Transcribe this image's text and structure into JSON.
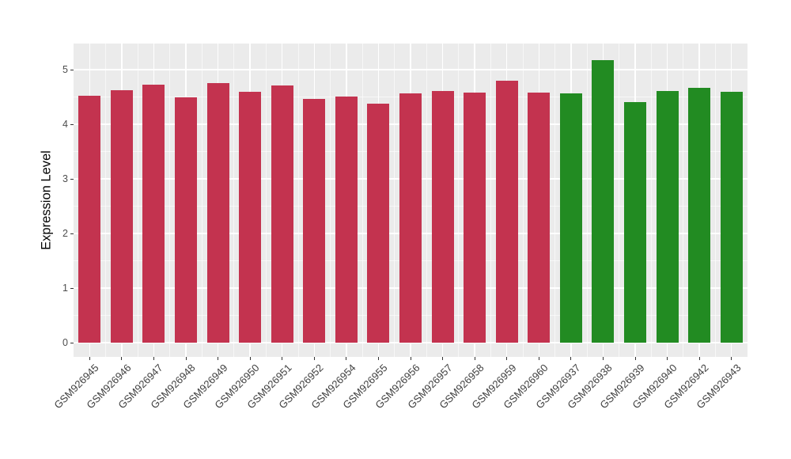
{
  "chart_data": {
    "type": "bar",
    "title": "",
    "xlabel": "",
    "ylabel": "Expression Level",
    "ylim": [
      0,
      5.45
    ],
    "yticks": [
      0,
      1,
      2,
      3,
      4,
      5
    ],
    "yminor_ticks": [
      0.5,
      1.5,
      2.5,
      3.5,
      4.5
    ],
    "grid": "on",
    "legend": "none",
    "x_tick_rotation_deg": 45,
    "categories": [
      "GSM926945",
      "GSM926946",
      "GSM926947",
      "GSM926948",
      "GSM926949",
      "GSM926950",
      "GSM926951",
      "GSM926952",
      "GSM926954",
      "GSM926955",
      "GSM926956",
      "GSM926957",
      "GSM926958",
      "GSM926959",
      "GSM926960",
      "GSM926937",
      "GSM926938",
      "GSM926939",
      "GSM926940",
      "GSM926942",
      "GSM926943"
    ],
    "values": [
      4.52,
      4.63,
      4.73,
      4.5,
      4.76,
      4.6,
      4.71,
      4.46,
      4.51,
      4.38,
      4.56,
      4.61,
      4.58,
      4.8,
      4.58,
      4.57,
      5.18,
      4.4,
      4.61,
      4.67,
      4.59
    ],
    "groups": [
      "red",
      "red",
      "red",
      "red",
      "red",
      "red",
      "red",
      "red",
      "red",
      "red",
      "red",
      "red",
      "red",
      "red",
      "red",
      "green",
      "green",
      "green",
      "green",
      "green",
      "green"
    ],
    "colors": {
      "red": "#C3334F",
      "green": "#228B22"
    },
    "panel_background": "#EBEBEB",
    "grid_color": "#FFFFFF",
    "tick_color": "#333333",
    "tick_label_color": "#4D4D4D"
  }
}
